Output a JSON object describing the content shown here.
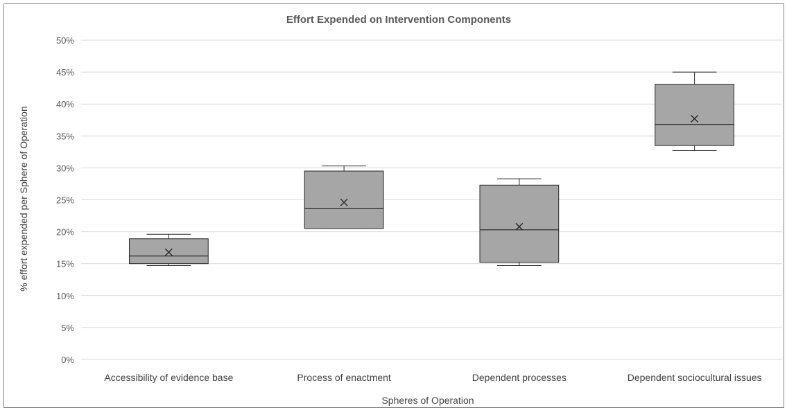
{
  "chart_data": {
    "type": "box",
    "title": "Effort Expended on Intervention Components",
    "xlabel": "Spheres of Operation",
    "ylabel": "% effort expended per Sphere of Operation",
    "ylim": [
      0,
      50
    ],
    "yticks": [
      0,
      5,
      10,
      15,
      20,
      25,
      30,
      35,
      40,
      45,
      50
    ],
    "ytick_labels": [
      "0%",
      "5%",
      "10%",
      "15%",
      "20%",
      "25%",
      "30%",
      "35%",
      "40%",
      "45%",
      "50%"
    ],
    "grid": true,
    "colors": {
      "box_fill": "#a6a6a6",
      "outline": "#262626",
      "grid": "#d9d9d9"
    },
    "categories": [
      "Accessibility of evidence base",
      "Process of enactment",
      "Dependent processes",
      "Dependent sociocultural issues"
    ],
    "boxes": [
      {
        "min": 14.7,
        "q1": 15.0,
        "median": 16.2,
        "q3": 18.9,
        "max": 19.6,
        "mean": 16.8
      },
      {
        "min": 20.5,
        "q1": 20.5,
        "median": 23.6,
        "q3": 29.5,
        "max": 30.3,
        "mean": 24.6
      },
      {
        "min": 14.7,
        "q1": 15.2,
        "median": 20.3,
        "q3": 27.3,
        "max": 28.3,
        "mean": 20.8
      },
      {
        "min": 32.7,
        "q1": 33.5,
        "median": 36.8,
        "q3": 43.1,
        "max": 45.0,
        "mean": 37.7
      }
    ]
  }
}
